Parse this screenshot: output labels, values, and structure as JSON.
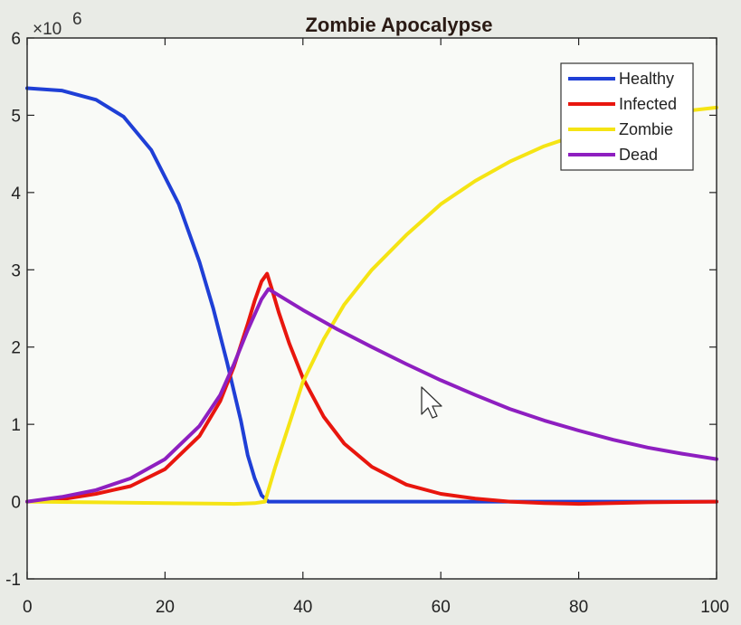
{
  "chart_data": {
    "type": "line",
    "title": "Zombie Apocalypse",
    "xlabel": "",
    "ylabel": "",
    "y_exponent_label": "×10",
    "y_exponent_power": "6",
    "xlim": [
      0,
      100
    ],
    "ylim": [
      -1,
      6
    ],
    "x_ticks": [
      0,
      20,
      40,
      60,
      80,
      100
    ],
    "y_ticks": [
      -1,
      0,
      1,
      2,
      3,
      4,
      5,
      6
    ],
    "grid": false,
    "legend_position": "top-right",
    "series": [
      {
        "name": "Healthy",
        "color": "#1f3fd6",
        "x": [
          0,
          5,
          10,
          14,
          18,
          22,
          25,
          27,
          29,
          31,
          32,
          33,
          34,
          35,
          40,
          50,
          60,
          70,
          80,
          90,
          100
        ],
        "y": [
          5.35,
          5.32,
          5.2,
          4.98,
          4.55,
          3.85,
          3.1,
          2.5,
          1.8,
          1.05,
          0.6,
          0.3,
          0.08,
          0.0,
          0.0,
          0.0,
          0.0,
          0.0,
          0.0,
          0.0,
          0.0
        ]
      },
      {
        "name": "Infected",
        "color": "#e8160e",
        "x": [
          0,
          5,
          10,
          15,
          20,
          25,
          28,
          30,
          32,
          33,
          34,
          34.8,
          35.5,
          36.5,
          38,
          40,
          43,
          46,
          50,
          55,
          60,
          65,
          70,
          75,
          80,
          90,
          100
        ],
        "y": [
          0.0,
          0.03,
          0.1,
          0.2,
          0.42,
          0.85,
          1.3,
          1.75,
          2.3,
          2.6,
          2.85,
          2.95,
          2.75,
          2.45,
          2.05,
          1.6,
          1.1,
          0.75,
          0.45,
          0.22,
          0.1,
          0.04,
          0.0,
          -0.02,
          -0.03,
          -0.01,
          0.0
        ]
      },
      {
        "name": "Zombie",
        "color": "#f5e414",
        "x": [
          0,
          10,
          20,
          30,
          33,
          34.5,
          36,
          38,
          40,
          43,
          46,
          50,
          55,
          60,
          65,
          70,
          75,
          80,
          85,
          90,
          95,
          100
        ],
        "y": [
          0.0,
          -0.01,
          -0.02,
          -0.03,
          -0.02,
          0.0,
          0.45,
          1.0,
          1.55,
          2.1,
          2.55,
          3.0,
          3.45,
          3.85,
          4.15,
          4.4,
          4.6,
          4.75,
          4.88,
          4.97,
          5.05,
          5.1
        ]
      },
      {
        "name": "Dead",
        "color": "#8e1fc0",
        "x": [
          0,
          5,
          10,
          15,
          20,
          25,
          28,
          30,
          32,
          34,
          35,
          40,
          45,
          50,
          55,
          60,
          65,
          70,
          75,
          80,
          85,
          90,
          95,
          100
        ],
        "y": [
          0.0,
          0.06,
          0.15,
          0.3,
          0.55,
          0.98,
          1.38,
          1.78,
          2.22,
          2.62,
          2.75,
          2.48,
          2.23,
          2.0,
          1.78,
          1.57,
          1.38,
          1.2,
          1.05,
          0.92,
          0.8,
          0.7,
          0.62,
          0.55
        ]
      }
    ]
  }
}
